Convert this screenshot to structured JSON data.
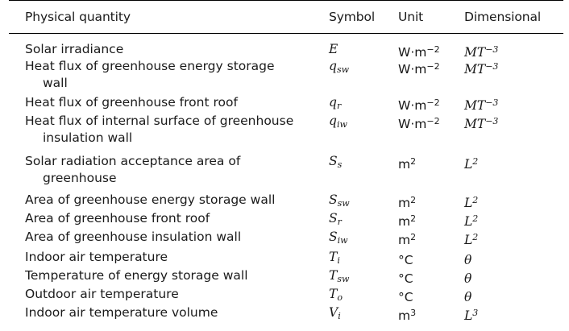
{
  "headers": {
    "quantity": "Physical quantity",
    "symbol": "Symbol",
    "unit": "Unit",
    "dimensional": "Dimensional"
  },
  "rows": [
    {
      "q1": "Solar irradiance",
      "q2": "",
      "sym": "E",
      "sub": "",
      "unit": "W·m",
      "unit_sup": "−2",
      "dim": "MT",
      "dim_sup": "−3"
    },
    {
      "q1": "Heat flux of greenhouse energy storage",
      "q2": "wall",
      "sym": "q",
      "sub": "sw",
      "unit": "W·m",
      "unit_sup": "−2",
      "dim": "MT",
      "dim_sup": "−3"
    },
    {
      "q1": "Heat flux of greenhouse front roof",
      "q2": "",
      "sym": "q",
      "sub": "r",
      "unit": "W·m",
      "unit_sup": "−2",
      "dim": "MT",
      "dim_sup": "−3"
    },
    {
      "q1": "Heat flux of internal surface of greenhouse",
      "q2": "insulation wall",
      "sym": "q",
      "sub": "iw",
      "unit": "W·m",
      "unit_sup": "−2",
      "dim": "MT",
      "dim_sup": "−3"
    },
    {
      "q1": "Solar radiation acceptance area of",
      "q2": "greenhouse",
      "sym": "S",
      "sub": "s",
      "unit": "m",
      "unit_sup": "2",
      "dim": "L",
      "dim_sup": "2"
    },
    {
      "q1": "Area of greenhouse energy storage wall",
      "q2": "",
      "sym": "S",
      "sub": "sw",
      "unit": "m",
      "unit_sup": "2",
      "dim": "L",
      "dim_sup": "2"
    },
    {
      "q1": "Area of greenhouse front roof",
      "q2": "",
      "sym": "S",
      "sub": "r",
      "unit": "m",
      "unit_sup": "2",
      "dim": "L",
      "dim_sup": "2"
    },
    {
      "q1": "Area of greenhouse insulation wall",
      "q2": "",
      "sym": "S",
      "sub": "iw",
      "unit": "m",
      "unit_sup": "2",
      "dim": "L",
      "dim_sup": "2"
    },
    {
      "q1": "Indoor air temperature",
      "q2": "",
      "sym": "T",
      "sub": "i",
      "unit": "°C",
      "unit_sup": "",
      "dim": "θ",
      "dim_sup": ""
    },
    {
      "q1": "Temperature of energy storage wall",
      "q2": "",
      "sym": "T",
      "sub": "sw",
      "unit": "°C",
      "unit_sup": "",
      "dim": "θ",
      "dim_sup": ""
    },
    {
      "q1": "Outdoor air temperature",
      "q2": "",
      "sym": "T",
      "sub": "o",
      "unit": "°C",
      "unit_sup": "",
      "dim": "θ",
      "dim_sup": ""
    },
    {
      "q1": "Indoor air temperature volume",
      "q2": "",
      "sym": "V",
      "sub": "i",
      "unit": "m",
      "unit_sup": "3",
      "dim": "L",
      "dim_sup": "3"
    }
  ]
}
